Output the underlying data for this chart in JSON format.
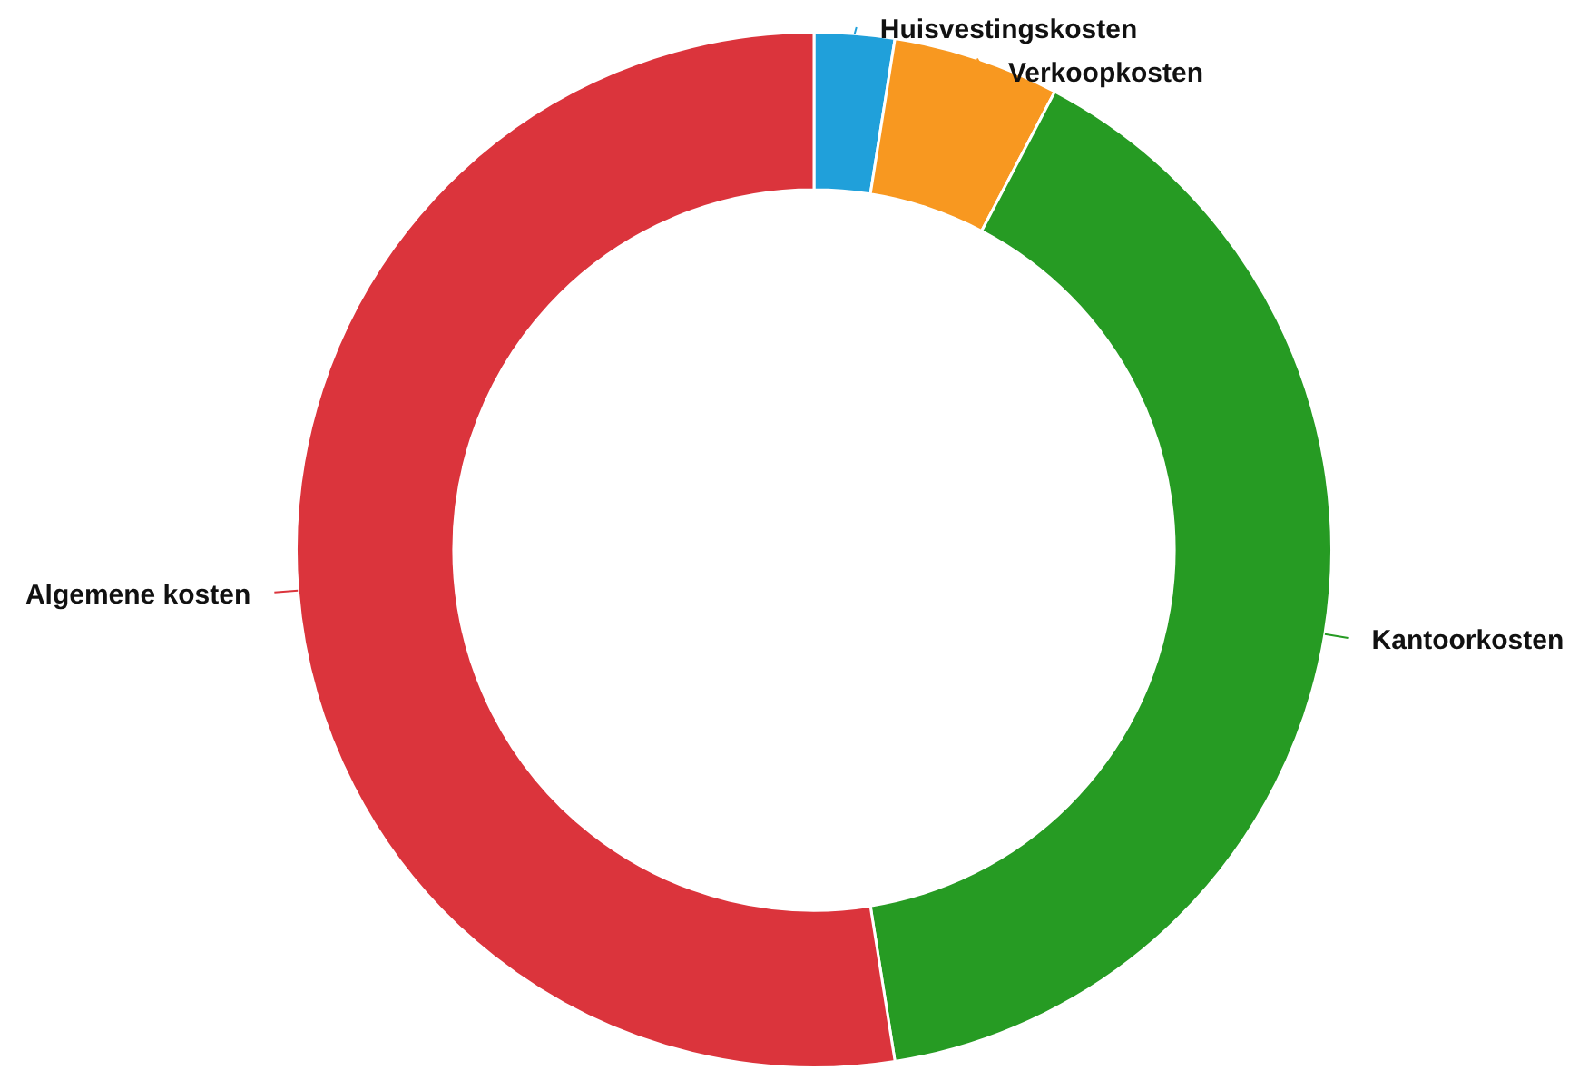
{
  "chart_data": {
    "type": "donut",
    "categories": [
      "Huisvestingskosten",
      "Verkoopkosten",
      "Kantoorkosten",
      "Algemene kosten"
    ],
    "values": [
      2.5,
      5.2,
      39.8,
      52.5
    ],
    "colors": [
      "#20a0da",
      "#f89820",
      "#269b23",
      "#db343c"
    ]
  }
}
